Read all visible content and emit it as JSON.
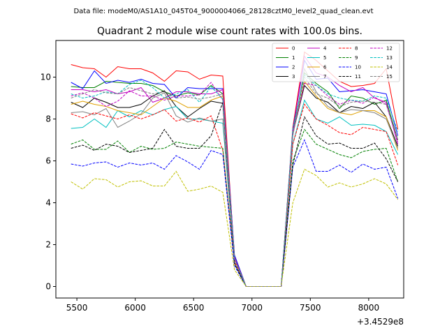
{
  "chart_data": {
    "type": "line",
    "suptitle": "Data file: modeM0/AS1A10_045T04_9000004066_28128cztM0_level2_quad_clean.evt",
    "title": "Quadrant 2 module wise count rates with 100.0s bins.",
    "xlabel": "",
    "ylabel": "",
    "x_offset_label": "+3.4529e8",
    "xlim": [
      5320,
      8300
    ],
    "ylim": [
      -0.55,
      11.75
    ],
    "x_ticks": [
      5500,
      6000,
      6500,
      7000,
      7500,
      8000
    ],
    "x_tick_labels": [
      "5500",
      "6000",
      "6500",
      "7000",
      "7500",
      "8000"
    ],
    "y_ticks": [
      0,
      2,
      4,
      6,
      8,
      10
    ],
    "y_tick_labels": [
      "0",
      "2",
      "4",
      "6",
      "8",
      "10"
    ],
    "grid": false,
    "legend_position": "top-right",
    "x": [
      5450,
      5550,
      5650,
      5750,
      5850,
      5950,
      6050,
      6150,
      6250,
      6350,
      6450,
      6550,
      6650,
      6750,
      6850,
      6950,
      7050,
      7150,
      7250,
      7350,
      7450,
      7550,
      7650,
      7750,
      7850,
      7950,
      8050,
      8150,
      8250
    ],
    "series": [
      {
        "name": "0",
        "color": "#ff0000",
        "dash": "solid",
        "values": [
          10.6,
          10.45,
          10.4,
          10.0,
          10.5,
          10.4,
          10.4,
          10.2,
          9.8,
          10.3,
          10.25,
          9.9,
          10.1,
          10.05,
          1.3,
          0,
          0,
          0,
          0,
          7.6,
          11.2,
          10.8,
          10.3,
          9.8,
          9.55,
          9.6,
          9.7,
          10.4,
          7.5
        ]
      },
      {
        "name": "1",
        "color": "#008000",
        "dash": "solid",
        "values": [
          9.55,
          9.5,
          9.5,
          9.8,
          9.75,
          9.7,
          9.7,
          9.6,
          9.3,
          9.1,
          9.25,
          9.15,
          9.6,
          9.2,
          1.5,
          0,
          0,
          0,
          0,
          7.4,
          10.2,
          9.7,
          9.3,
          8.5,
          9.1,
          9.0,
          8.7,
          8.9,
          7.0
        ]
      },
      {
        "name": "2",
        "color": "#0000ff",
        "dash": "solid",
        "values": [
          9.75,
          9.45,
          10.3,
          9.7,
          9.85,
          9.75,
          9.9,
          9.7,
          9.65,
          9.0,
          9.5,
          9.45,
          9.45,
          9.45,
          1.5,
          0,
          0,
          0,
          0,
          7.5,
          10.8,
          9.9,
          9.95,
          9.3,
          9.35,
          9.4,
          9.3,
          9.2,
          7.2
        ]
      },
      {
        "name": "3",
        "color": "#000000",
        "dash": "solid",
        "values": [
          8.8,
          8.55,
          9.0,
          8.8,
          8.55,
          8.55,
          8.7,
          9.1,
          9.35,
          8.6,
          8.1,
          8.5,
          8.85,
          8.75,
          1.3,
          0,
          0,
          0,
          0,
          7.3,
          9.6,
          9.0,
          8.8,
          8.3,
          8.6,
          8.5,
          8.8,
          8.1,
          6.7
        ]
      },
      {
        "name": "4",
        "color": "#c000c0",
        "dash": "solid",
        "values": [
          9.4,
          9.4,
          9.3,
          9.4,
          9.2,
          9.3,
          9.5,
          8.8,
          9.0,
          9.3,
          9.3,
          9.2,
          9.2,
          9.4,
          1.4,
          0,
          0,
          0,
          0,
          7.4,
          11.0,
          10.2,
          10.0,
          9.6,
          9.3,
          9.5,
          9.0,
          8.8,
          6.8
        ]
      },
      {
        "name": "5",
        "color": "#00c0c0",
        "dash": "solid",
        "values": [
          7.55,
          7.6,
          8.0,
          7.6,
          8.4,
          8.1,
          8.4,
          8.2,
          8.45,
          8.6,
          8.0,
          8.0,
          7.9,
          7.8,
          1.3,
          0,
          0,
          0,
          0,
          6.8,
          8.9,
          8.0,
          7.8,
          8.1,
          7.7,
          7.75,
          7.7,
          7.4,
          6.3
        ]
      },
      {
        "name": "6",
        "color": "#e0a000",
        "dash": "solid",
        "values": [
          8.7,
          8.85,
          8.7,
          8.6,
          8.4,
          8.3,
          8.2,
          8.6,
          9.0,
          8.85,
          8.55,
          8.55,
          8.9,
          9.1,
          1.3,
          0,
          0,
          0,
          0,
          7.3,
          9.8,
          9.1,
          8.5,
          8.3,
          8.2,
          8.4,
          8.4,
          8.1,
          6.5
        ]
      },
      {
        "name": "7",
        "color": "#808080",
        "dash": "solid",
        "values": [
          8.3,
          8.35,
          8.2,
          8.5,
          7.6,
          7.9,
          8.25,
          9.0,
          9.25,
          8.15,
          7.85,
          8.05,
          7.9,
          8.0,
          1.3,
          0,
          0,
          0,
          0,
          7.2,
          10.4,
          9.3,
          8.6,
          8.3,
          8.45,
          8.4,
          8.3,
          8.0,
          6.6
        ]
      },
      {
        "name": "8",
        "color": "#ff0000",
        "dash": "dashed",
        "values": [
          8.25,
          8.05,
          8.3,
          8.15,
          8.0,
          8.2,
          8.0,
          8.2,
          8.45,
          7.9,
          8.05,
          7.85,
          8.15,
          6.5,
          1.2,
          0,
          0,
          0,
          0,
          6.8,
          8.7,
          8.0,
          7.7,
          7.35,
          7.25,
          7.6,
          7.5,
          7.4,
          5.8
        ]
      },
      {
        "name": "9",
        "color": "#008000",
        "dash": "dashed",
        "values": [
          6.8,
          7.0,
          6.55,
          6.55,
          6.95,
          6.4,
          6.7,
          6.55,
          6.6,
          6.9,
          6.8,
          6.7,
          6.65,
          6.6,
          1.1,
          0,
          0,
          0,
          0,
          6.0,
          7.5,
          6.8,
          6.55,
          6.3,
          6.15,
          6.45,
          6.55,
          6.6,
          5.0
        ]
      },
      {
        "name": "10",
        "color": "#0000ff",
        "dash": "dashed",
        "values": [
          5.85,
          5.75,
          5.9,
          5.95,
          5.7,
          5.9,
          5.8,
          5.9,
          5.6,
          6.25,
          5.95,
          5.6,
          6.5,
          6.3,
          1.0,
          0,
          0,
          0,
          0,
          5.7,
          7.0,
          5.5,
          5.5,
          5.8,
          5.45,
          5.85,
          5.6,
          5.7,
          4.2
        ]
      },
      {
        "name": "11",
        "color": "#000000",
        "dash": "dashed",
        "values": [
          6.6,
          6.75,
          6.5,
          6.8,
          6.7,
          6.4,
          6.5,
          6.6,
          7.5,
          6.7,
          6.6,
          6.6,
          7.2,
          8.8,
          1.1,
          0,
          0,
          0,
          0,
          5.8,
          8.1,
          7.2,
          6.8,
          6.85,
          6.6,
          6.6,
          6.85,
          6.1,
          5.0
        ]
      },
      {
        "name": "12",
        "color": "#c000c0",
        "dash": "dashed",
        "values": [
          9.1,
          9.25,
          9.0,
          8.6,
          8.85,
          9.35,
          9.1,
          9.1,
          8.9,
          9.1,
          9.1,
          9.15,
          9.75,
          8.9,
          1.3,
          0,
          0,
          0,
          0,
          7.3,
          9.7,
          9.6,
          9.1,
          8.7,
          8.9,
          8.75,
          9.05,
          8.7,
          6.9
        ]
      },
      {
        "name": "13",
        "color": "#00c0c0",
        "dash": "dashed",
        "values": [
          9.2,
          9.0,
          9.1,
          9.3,
          9.2,
          9.65,
          9.85,
          9.5,
          9.0,
          9.2,
          9.4,
          8.8,
          9.55,
          8.95,
          1.3,
          0,
          0,
          0,
          0,
          7.5,
          10.1,
          9.6,
          9.2,
          9.0,
          8.9,
          8.85,
          9.1,
          9.0,
          7.4
        ]
      },
      {
        "name": "14",
        "color": "#c0c000",
        "dash": "dashed",
        "values": [
          5.0,
          4.65,
          5.15,
          5.1,
          4.75,
          5.0,
          5.05,
          4.8,
          4.8,
          5.5,
          4.55,
          4.65,
          4.8,
          4.5,
          0.8,
          0,
          0,
          0,
          0,
          4.0,
          5.6,
          5.3,
          4.75,
          4.95,
          4.75,
          4.9,
          5.15,
          4.9,
          4.15
        ]
      },
      {
        "name": "15",
        "color": "#808080",
        "dash": "dashed",
        "values": [
          9.0,
          9.2,
          9.4,
          9.25,
          9.2,
          9.5,
          9.35,
          9.2,
          9.3,
          9.0,
          9.05,
          8.95,
          9.05,
          9.2,
          1.3,
          0,
          0,
          0,
          0,
          7.2,
          10.0,
          9.2,
          9.0,
          8.6,
          8.8,
          8.85,
          8.8,
          8.7,
          7.0
        ]
      }
    ]
  }
}
